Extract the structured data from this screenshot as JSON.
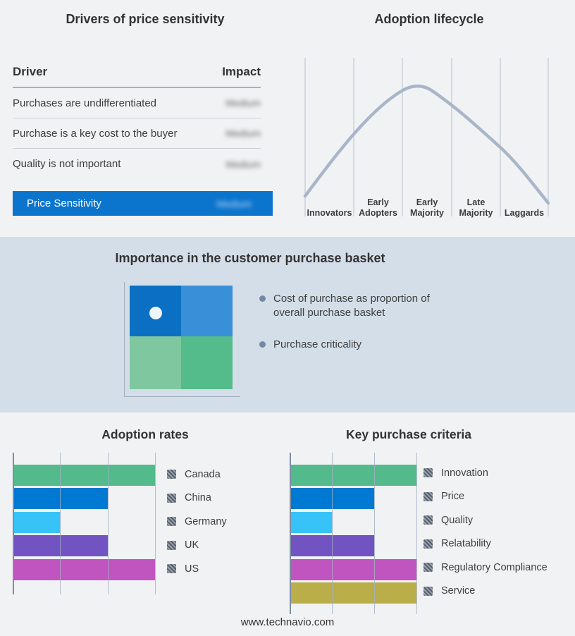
{
  "drivers_panel": {
    "title": "Drivers of price sensitivity",
    "table": {
      "col_driver": "Driver",
      "col_impact": "Impact",
      "impact_values_blurred": true,
      "rows": [
        {
          "driver": "Purchases are undifferentiated",
          "impact": "Medium"
        },
        {
          "driver": "Purchase is a key cost to the buyer",
          "impact": "Medium"
        },
        {
          "driver": "Quality is not important",
          "impact": "Medium"
        }
      ]
    },
    "highlight": {
      "label": "Price Sensitivity",
      "impact": "Medium"
    }
  },
  "importance_panel": {
    "title": "Importance in the customer purchase basket",
    "bullets": [
      "Cost of purchase as proportion of overall purchase basket",
      "Purchase criticality"
    ],
    "quadrant": {
      "colors": {
        "top_left": "#0b70c4",
        "top_right": "#3a8fd9",
        "bottom_left": "#7fc79e",
        "bottom_right": "#54bc8a"
      },
      "marker_quadrant": "top_left"
    }
  },
  "footer": {
    "url": "www.technavio.com"
  },
  "theme": {
    "page_bg": "#f1f2f4",
    "band_bg": "#d4dee9",
    "accent_blue": "#0b74cc",
    "curve_color": "#a9b6c9",
    "grid_color": "#a2afc4"
  },
  "chart_data": [
    {
      "id": "adoption_lifecycle",
      "type": "line",
      "title": "Adoption lifecycle",
      "subtitle": "bell-shaped adoption curve over five adopter segments",
      "categories": [
        "Innovators",
        "Early Adopters",
        "Early Majority",
        "Late Majority",
        "Laggards"
      ],
      "stage_labels": [
        "Innovators",
        "Early\nAdopters",
        "Early\nMajority",
        "Late\nMajority",
        "Laggards"
      ],
      "curve": "bell curve rising from Innovators, peaking in Early Majority, falling through Laggards",
      "grid": "vertical segment dividers only",
      "legend_position": "none"
    },
    {
      "id": "adoption_rates",
      "type": "bar",
      "orientation": "horizontal",
      "title": "Adoption rates",
      "categories": [
        "Canada",
        "China",
        "Germany",
        "UK",
        "US"
      ],
      "values": [
        3,
        2,
        1,
        2,
        3
      ],
      "axis_max": 3,
      "axis_note": "unlabeled axis; values estimated in gridline units (3 gridlines)",
      "colors": [
        "#53bb8b",
        "#0079d2",
        "#38c3f8",
        "#7153c1",
        "#c055c0"
      ],
      "grid": true,
      "legend_position": "right",
      "legend_swatch_style": "hatched-redacted"
    },
    {
      "id": "key_purchase_criteria",
      "type": "bar",
      "orientation": "horizontal",
      "title": "Key purchase criteria",
      "categories": [
        "Innovation",
        "Price",
        "Quality",
        "Relatability",
        "Regulatory Compliance",
        "Service"
      ],
      "values": [
        3,
        2,
        1,
        2,
        3,
        3
      ],
      "axis_max": 3,
      "axis_note": "unlabeled axis; values estimated in gridline units (3 gridlines)",
      "colors": [
        "#53bb8b",
        "#0079d2",
        "#38c3f8",
        "#7153c1",
        "#c055c0",
        "#b9ae49"
      ],
      "grid": true,
      "legend_position": "right",
      "legend_swatch_style": "hatched-redacted"
    }
  ]
}
